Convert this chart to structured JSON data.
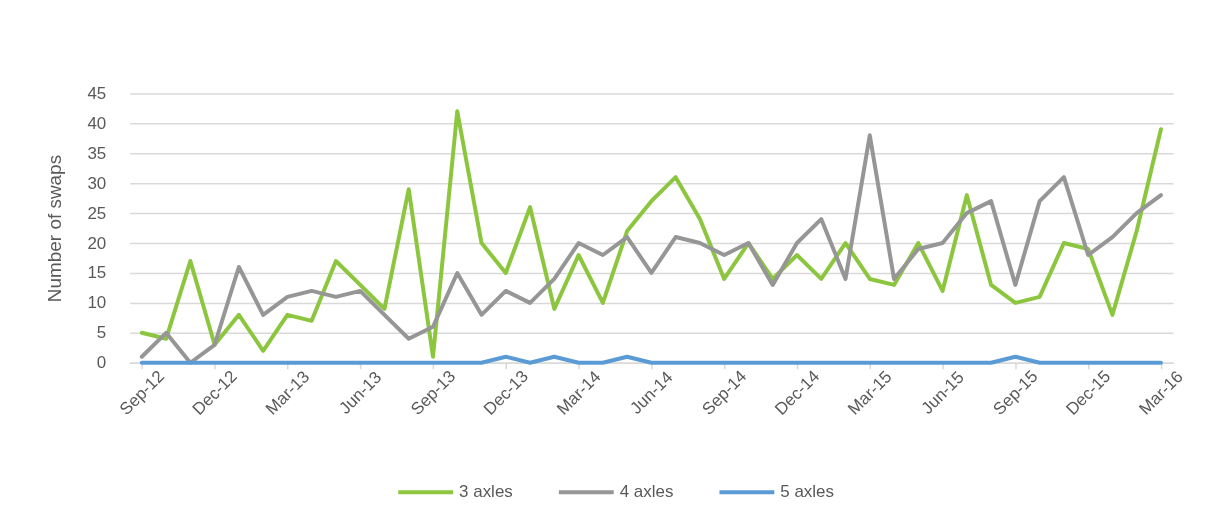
{
  "chart_data": {
    "type": "line",
    "ylabel": "Number of swaps",
    "categories": [
      "Sep-12",
      null,
      null,
      "Dec-12",
      null,
      null,
      "Mar-13",
      null,
      null,
      "Jun-13",
      null,
      null,
      "Sep-13",
      null,
      null,
      "Dec-13",
      null,
      null,
      "Mar-14",
      null,
      null,
      "Jun-14",
      null,
      null,
      "Sep-14",
      null,
      null,
      "Dec-14",
      null,
      null,
      "Mar-15",
      null,
      null,
      "Jun-15",
      null,
      null,
      "Sep-15",
      null,
      null,
      "Dec-15",
      null,
      null,
      "Mar-16"
    ],
    "series": [
      {
        "name": "3 axles",
        "color": "#8cc63f",
        "values": [
          5,
          4,
          17,
          3,
          8,
          2,
          8,
          7,
          17,
          13,
          9,
          29,
          1,
          42,
          20,
          15,
          26,
          9,
          18,
          10,
          22,
          27,
          31,
          24,
          14,
          20,
          14,
          18,
          14,
          20,
          14,
          13,
          20,
          12,
          28,
          13,
          10,
          11,
          20,
          19,
          8,
          22,
          39
        ]
      },
      {
        "name": "4 axles",
        "color": "#969696",
        "values": [
          1,
          5,
          0,
          3,
          16,
          8,
          11,
          12,
          11,
          12,
          8,
          4,
          6,
          15,
          8,
          12,
          10,
          14,
          20,
          18,
          21,
          15,
          21,
          20,
          18,
          20,
          13,
          20,
          24,
          14,
          38,
          14,
          19,
          20,
          25,
          27,
          13,
          27,
          31,
          18,
          21,
          25,
          28
        ]
      },
      {
        "name": "5 axles",
        "color": "#5b9bd5",
        "values": [
          0,
          0,
          0,
          0,
          0,
          0,
          0,
          0,
          0,
          0,
          0,
          0,
          0,
          0,
          0,
          1,
          0,
          1,
          0,
          0,
          1,
          0,
          0,
          0,
          0,
          0,
          0,
          0,
          0,
          0,
          0,
          0,
          0,
          0,
          0,
          0,
          1,
          0,
          0,
          0,
          0,
          0,
          0
        ]
      }
    ],
    "ylim": [
      0,
      45
    ],
    "yticks": [
      0,
      5,
      10,
      15,
      20,
      25,
      30,
      35,
      40,
      45
    ],
    "grid": "y",
    "legend": "bottom",
    "marker": "none",
    "line_style": "solid"
  }
}
